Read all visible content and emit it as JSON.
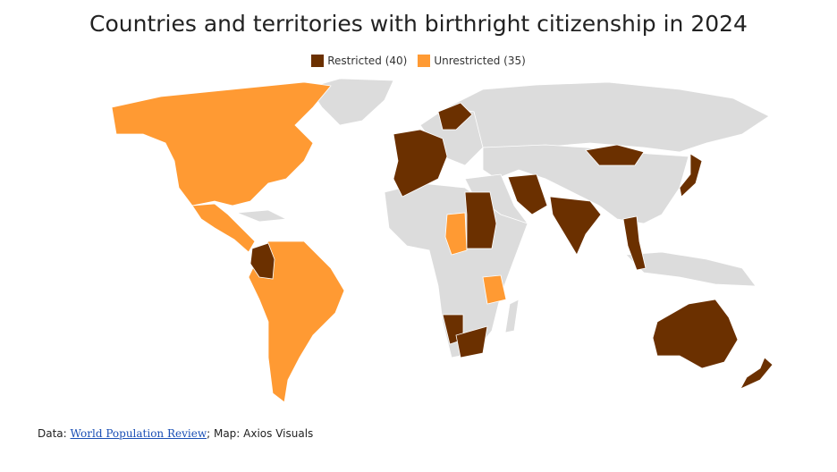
{
  "title": "Countries and territories with birthright citizenship in 2024",
  "legend": [
    {
      "label": "Restricted (40)",
      "color": "#6b3000"
    },
    {
      "label": "Unrestricted (35)",
      "color": "#ff9a33"
    }
  ],
  "footer": {
    "prefix": "Data: ",
    "link": "World Population Review",
    "suffix": "; Map: Axios Visuals"
  }
}
